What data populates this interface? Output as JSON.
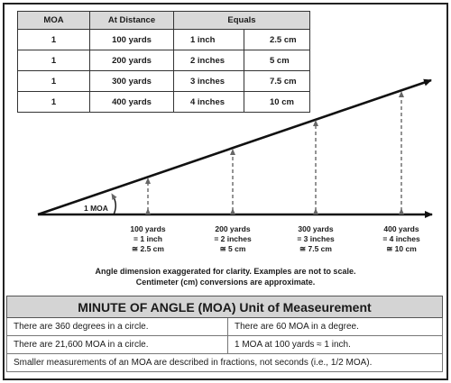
{
  "ref_table": {
    "headers": [
      "MOA",
      "At Distance",
      "Equals"
    ],
    "rows": [
      {
        "moa": "1",
        "distance": "100 yards",
        "inches": "1 inch",
        "cm": "2.5 cm"
      },
      {
        "moa": "1",
        "distance": "200 yards",
        "inches": "2 inches",
        "cm": "5 cm"
      },
      {
        "moa": "1",
        "distance": "300 yards",
        "inches": "3 inches",
        "cm": "7.5 cm"
      },
      {
        "moa": "1",
        "distance": "400 yards",
        "inches": "4 inches",
        "cm": "10 cm"
      }
    ]
  },
  "diagram": {
    "angle_label": "1 MOA",
    "markers": [
      {
        "distance": "100 yards",
        "inches": "= 1 inch",
        "cm": "≅ 2.5 cm"
      },
      {
        "distance": "200 yards",
        "inches": "= 2 inches",
        "cm": "≅ 5 cm"
      },
      {
        "distance": "300 yards",
        "inches": "= 3 inches",
        "cm": "≅ 7.5 cm"
      },
      {
        "distance": "400 yards",
        "inches": "= 4 inches",
        "cm": "≅ 10 cm"
      }
    ]
  },
  "note": {
    "line1": "Angle dimension exaggerated for clarity.  Examples are not to scale.",
    "line2": "Centimeter (cm) conversions are approximate."
  },
  "moa_table": {
    "title": "MINUTE OF ANGLE (MOA) Unit of Measeurement",
    "row1_left": "There are 360 degrees in a circle.",
    "row1_right": "There are 60 MOA in a degree.",
    "row2_left": "There are 21,600 MOA in a circle.",
    "row2_right": "1 MOA at 100 yards ≈ 1 inch.",
    "row3": "Smaller measurements of an MOA are described in fractions, not seconds (i.e., 1/2 MOA)."
  }
}
